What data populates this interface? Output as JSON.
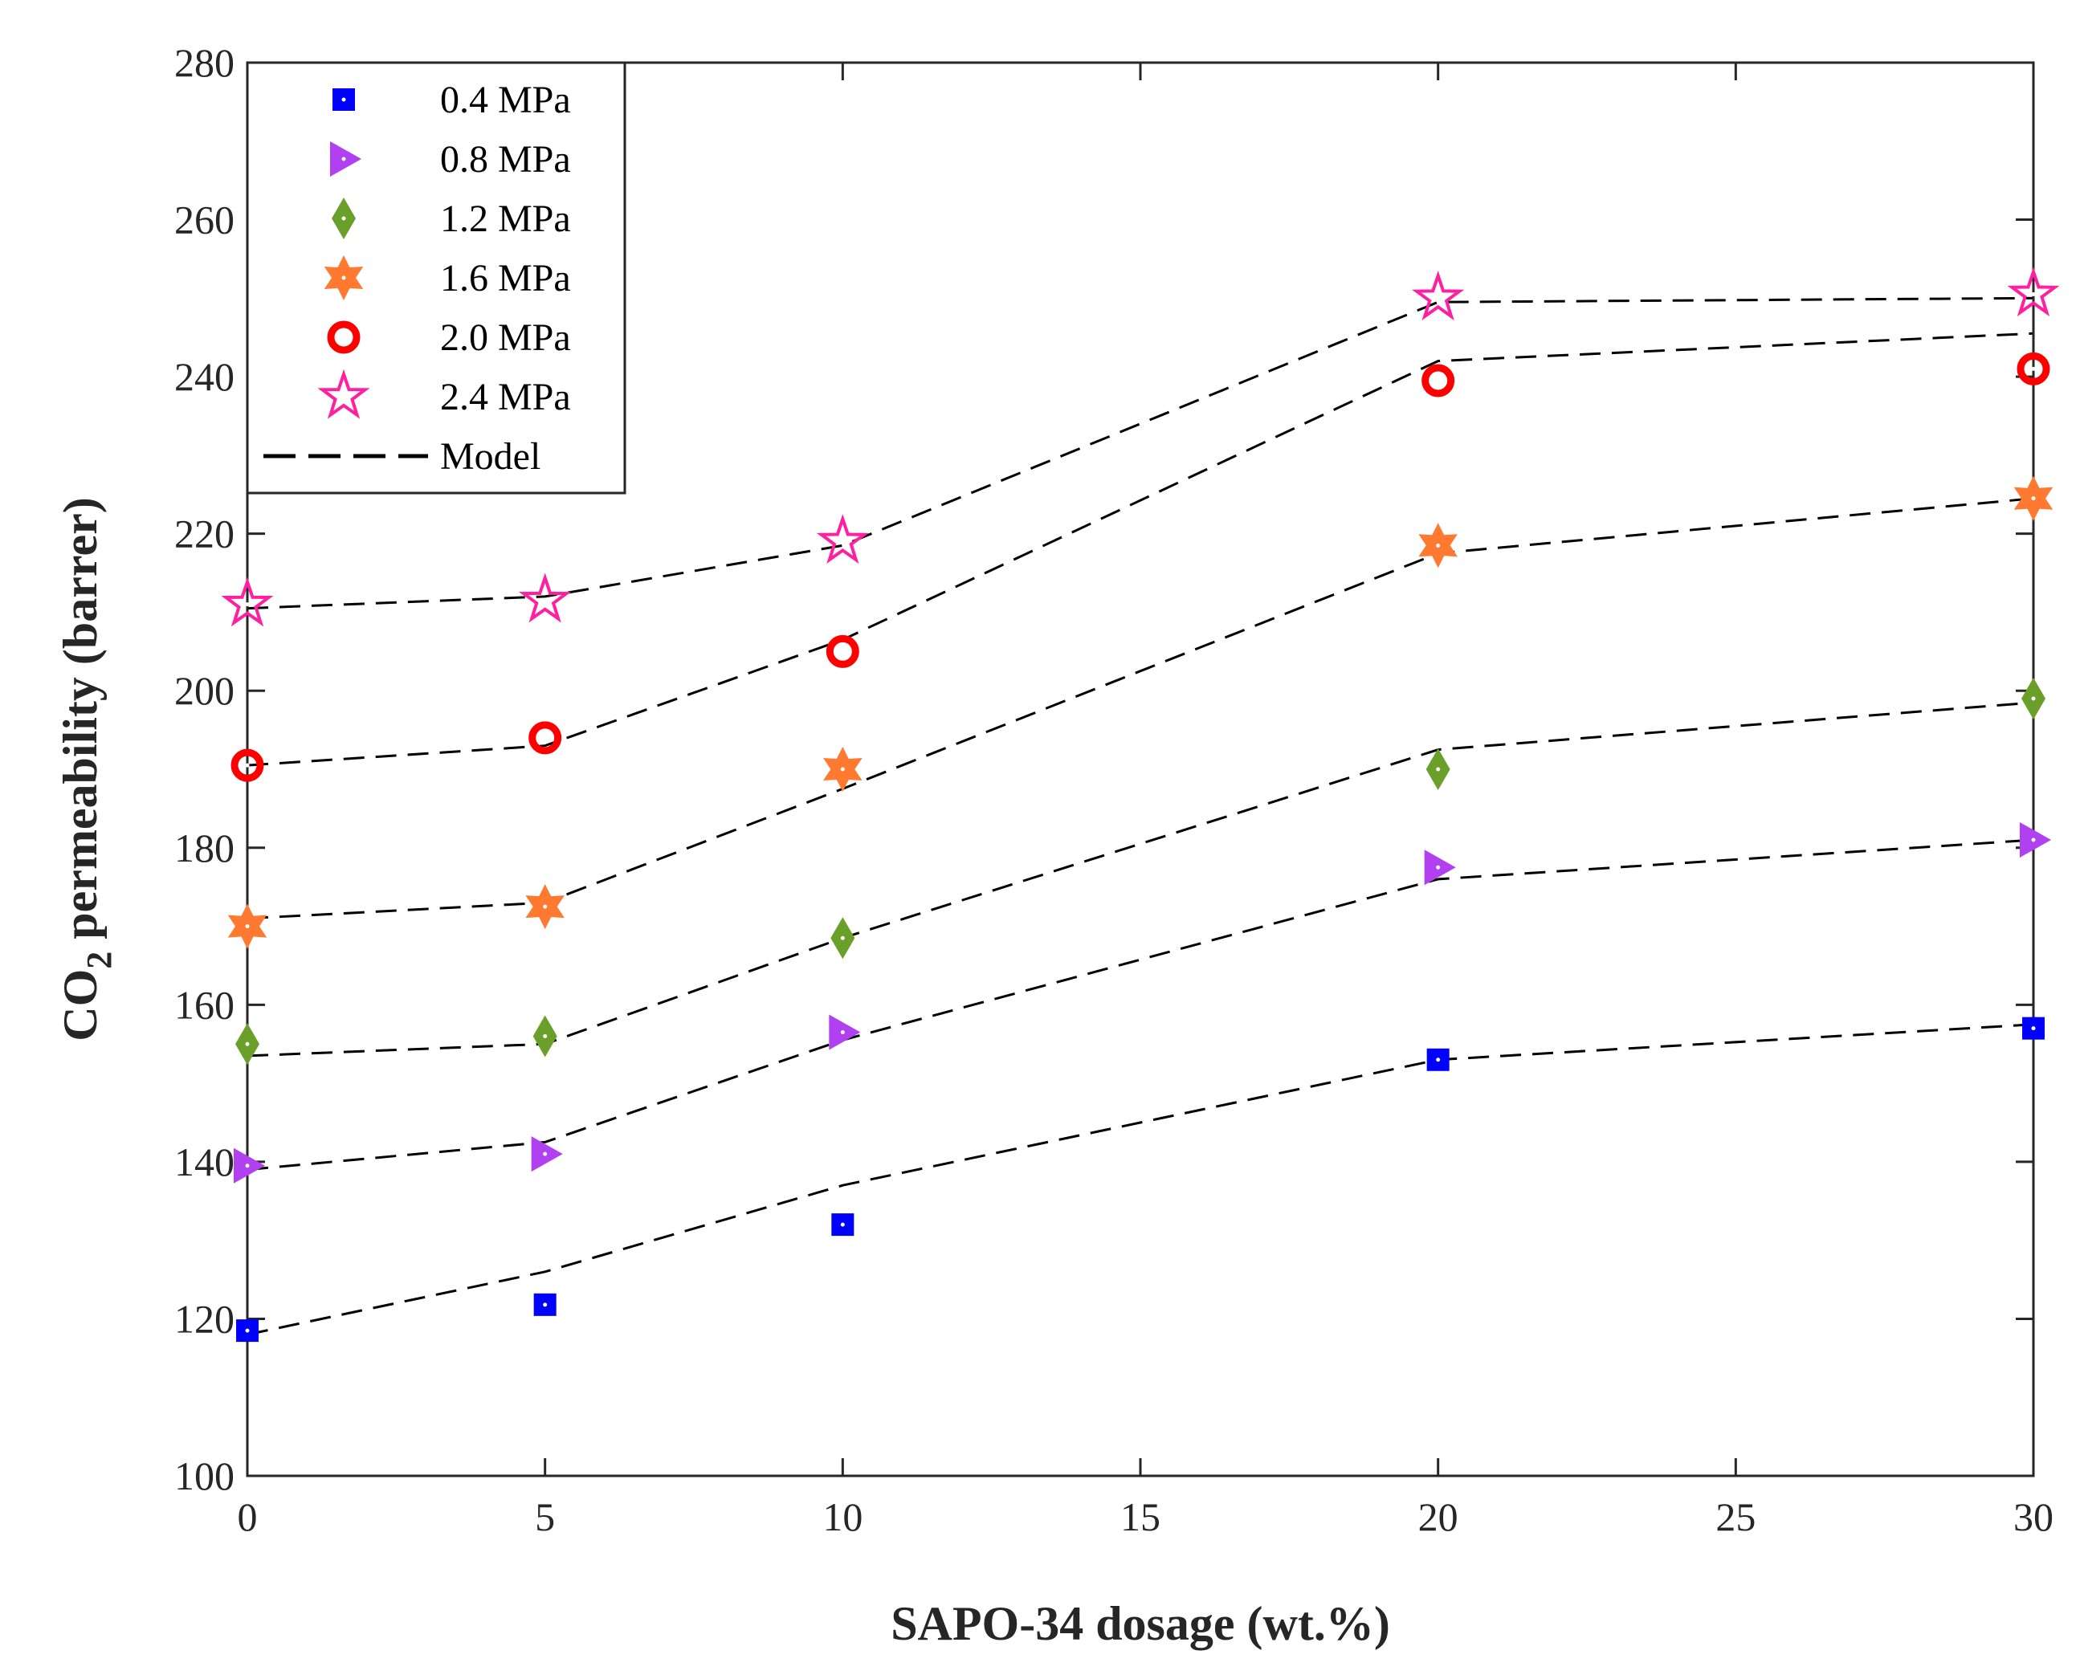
{
  "chart_data": {
    "type": "scatter",
    "title": "",
    "xlabel": "SAPO-34 dosage (wt.%)",
    "ylabel_main": "CO",
    "ylabel_sub": "2",
    "ylabel_rest": " permeability (barrer)",
    "xlim": [
      0,
      30
    ],
    "ylim": [
      100,
      280
    ],
    "xticks": [
      0,
      5,
      10,
      15,
      20,
      25,
      30
    ],
    "yticks": [
      100,
      120,
      140,
      160,
      180,
      200,
      220,
      240,
      260,
      280
    ],
    "grid": false,
    "legend_position": "top-left",
    "x": [
      0,
      5,
      10,
      20,
      30
    ],
    "series": [
      {
        "name": "0.4 MPa",
        "marker": "square",
        "color": "#0000ff",
        "values": [
          118.5,
          121.8,
          132,
          153,
          157
        ],
        "model": [
          118,
          126,
          137,
          153,
          157.5
        ]
      },
      {
        "name": "0.8 MPa",
        "marker": "triangle-right",
        "color": "#b040f0",
        "values": [
          139.5,
          141,
          156.5,
          177.5,
          181
        ],
        "model": [
          139,
          142.5,
          155.5,
          176,
          181
        ]
      },
      {
        "name": "1.2 MPa",
        "marker": "diamond",
        "color": "#6aa02a",
        "values": [
          155,
          156,
          168.5,
          190,
          199
        ],
        "model": [
          153.5,
          155,
          168.5,
          192.5,
          198.5
        ]
      },
      {
        "name": "1.6 MPa",
        "marker": "hexagram",
        "color": "#ff7a30",
        "values": [
          170,
          172.5,
          190,
          218.5,
          224.5
        ],
        "model": [
          171,
          173,
          187.5,
          217.5,
          224.5
        ]
      },
      {
        "name": "2.0 MPa",
        "marker": "circle",
        "color": "#ff0000",
        "values": [
          190.5,
          194,
          205,
          239.5,
          241
        ],
        "model": [
          190.5,
          193,
          206.5,
          242,
          245.5
        ]
      },
      {
        "name": "2.4 MPa",
        "marker": "pentagram",
        "color": "#ff20a0",
        "values": [
          211,
          211.5,
          219,
          250,
          250.5
        ],
        "model": [
          210.5,
          212,
          218.5,
          249.5,
          250
        ]
      }
    ],
    "model_legend": "Model"
  }
}
